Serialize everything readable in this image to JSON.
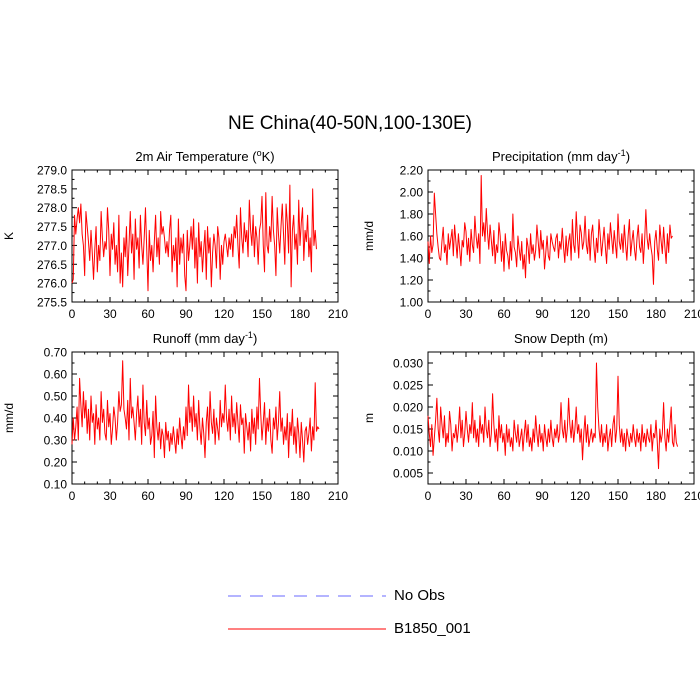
{
  "title": "NE China(40-50N,100-130E)",
  "colors": {
    "model": "#ff0000",
    "obs": "#6a6aff",
    "axis": "#000000"
  },
  "legend": [
    {
      "label": "No Obs",
      "style": "dashed",
      "color": "#6a6aff"
    },
    {
      "label": "B1850_001",
      "style": "solid",
      "color": "#ff0000"
    }
  ],
  "chart_data": [
    {
      "type": "line",
      "title": "2m Air Temperature (°K)",
      "title_parts": [
        "2m Air Temperature (",
        "o",
        "K)"
      ],
      "ylabel": "K",
      "xlim": [
        0,
        210
      ],
      "xticks": [
        0,
        30,
        60,
        90,
        120,
        150,
        180,
        210
      ],
      "xtick_labels": [
        "0",
        "30",
        "60",
        "90",
        "120",
        "150",
        "180",
        "210"
      ],
      "ylim": [
        275.5,
        279.0
      ],
      "yticks": [
        275.5,
        276.0,
        276.5,
        277.0,
        277.5,
        278.0,
        278.5,
        279.0
      ],
      "ytick_labels": [
        "275.5",
        "276.0",
        "276.5",
        "277.0",
        "277.5",
        "278.0",
        "278.5",
        "279.0"
      ],
      "series": [
        {
          "name": "B1850_001",
          "x_start": 0,
          "x_step": 1,
          "values": [
            276.0,
            276.1,
            277.8,
            277.3,
            277.7,
            278.0,
            277.6,
            278.1,
            277.3,
            277.0,
            276.2,
            277.9,
            277.5,
            277.1,
            276.6,
            277.4,
            276.8,
            276.1,
            276.9,
            277.5,
            276.3,
            277.0,
            276.6,
            277.9,
            277.2,
            276.7,
            277.1,
            276.9,
            278.0,
            277.4,
            276.2,
            277.3,
            276.9,
            277.6,
            276.5,
            277.0,
            276.3,
            277.8,
            276.0,
            276.8,
            275.9,
            277.2,
            276.7,
            277.5,
            276.2,
            277.0,
            277.9,
            276.8,
            277.3,
            276.1,
            277.7,
            276.9,
            277.2,
            276.4,
            277.8,
            277.0,
            276.5,
            277.2,
            278.0,
            276.9,
            275.8,
            277.4,
            276.6,
            277.0,
            276.3,
            277.1,
            277.8,
            276.7,
            277.2,
            276.5,
            277.9,
            277.3,
            277.5,
            277.2,
            276.8,
            277.1,
            276.7,
            277.4,
            277.8,
            276.3,
            277.0,
            276.6,
            277.2,
            275.9,
            277.7,
            276.5,
            277.2,
            276.8,
            277.3,
            276.2,
            275.8,
            277.4,
            276.6,
            277.0,
            277.5,
            276.9,
            277.7,
            276.4,
            277.2,
            276.0,
            277.6,
            276.7,
            277.1,
            276.3,
            276.9,
            277.4,
            276.1,
            277.5,
            276.8,
            277.2,
            275.9,
            276.8,
            277.3,
            277.0,
            276.4,
            277.5,
            277.2,
            276.1,
            277.0,
            276.5,
            277.1,
            277.3,
            277.0,
            276.7,
            277.2,
            276.9,
            277.3,
            276.7,
            277.5,
            277.2,
            277.8,
            277.0,
            276.4,
            278.0,
            277.2,
            276.8,
            277.6,
            277.1,
            277.4,
            276.7,
            278.2,
            277.4,
            277.0,
            277.8,
            276.7,
            277.5,
            277.2,
            276.5,
            277.4,
            277.6,
            278.3,
            277.0,
            276.3,
            278.4,
            277.0,
            276.8,
            277.5,
            277.1,
            278.3,
            277.4,
            277.0,
            276.2,
            278.0,
            277.3,
            276.8,
            277.5,
            278.1,
            277.3,
            276.5,
            278.1,
            277.6,
            276.8,
            278.6,
            275.9,
            277.4,
            277.8,
            276.9,
            277.3,
            276.5,
            278.2,
            277.0,
            277.6,
            278.0,
            276.6,
            277.4,
            277.1,
            277.8,
            276.7,
            277.2,
            276.3,
            278.5,
            277.0,
            277.4,
            276.9
          ]
        }
      ]
    },
    {
      "type": "line",
      "title": "Precipitation (mm day⁻¹)",
      "title_parts": [
        "Precipitation (mm day",
        "-1",
        ")"
      ],
      "ylabel": "mm/d",
      "xlim": [
        0,
        210
      ],
      "xticks": [
        0,
        30,
        60,
        90,
        120,
        150,
        180,
        210
      ],
      "xtick_labels": [
        "0",
        "30",
        "60",
        "90",
        "120",
        "150",
        "180",
        "210"
      ],
      "ylim": [
        1.0,
        2.2
      ],
      "yticks": [
        1.0,
        1.2,
        1.4,
        1.6,
        1.8,
        2.0,
        2.2
      ],
      "ytick_labels": [
        "1.00",
        "1.20",
        "1.40",
        "1.60",
        "1.80",
        "2.00",
        "2.20"
      ],
      "series": [
        {
          "name": "B1850_001",
          "x_start": 0,
          "x_step": 1,
          "values": [
            1.55,
            1.35,
            1.6,
            1.45,
            1.52,
            1.99,
            1.8,
            1.62,
            1.5,
            1.4,
            1.38,
            1.55,
            1.68,
            1.45,
            1.52,
            1.34,
            1.62,
            1.48,
            1.57,
            1.66,
            1.42,
            1.7,
            1.55,
            1.4,
            1.62,
            1.48,
            1.33,
            1.56,
            1.5,
            1.72,
            1.64,
            1.43,
            1.58,
            1.37,
            1.66,
            1.52,
            1.45,
            1.78,
            1.6,
            1.49,
            1.62,
            1.35,
            2.15,
            1.6,
            1.72,
            1.55,
            1.85,
            1.63,
            1.48,
            1.7,
            1.56,
            1.42,
            1.65,
            1.35,
            1.52,
            1.45,
            1.72,
            1.6,
            1.37,
            1.55,
            1.28,
            1.62,
            1.47,
            1.42,
            1.3,
            1.55,
            1.38,
            1.8,
            1.5,
            1.45,
            1.32,
            1.6,
            1.48,
            1.38,
            1.55,
            1.3,
            1.43,
            1.22,
            1.58,
            1.5,
            1.35,
            1.62,
            1.44,
            1.52,
            1.38,
            1.47,
            1.7,
            1.55,
            1.4,
            1.65,
            1.48,
            1.56,
            1.3,
            1.45,
            1.6,
            1.42,
            1.38,
            1.62,
            1.55,
            1.5,
            1.46,
            1.58,
            1.62,
            1.4,
            1.55,
            1.48,
            1.67,
            1.5,
            1.36,
            1.6,
            1.42,
            1.55,
            1.62,
            1.38,
            1.75,
            1.52,
            1.45,
            1.82,
            1.58,
            1.4,
            1.7,
            1.63,
            1.48,
            1.55,
            1.78,
            1.52,
            1.44,
            1.66,
            1.38,
            1.62,
            1.7,
            1.5,
            1.36,
            1.58,
            1.45,
            1.75,
            1.6,
            1.42,
            1.55,
            1.68,
            1.5,
            1.35,
            1.62,
            1.48,
            1.72,
            1.58,
            1.44,
            1.65,
            1.52,
            1.4,
            1.8,
            1.55,
            1.48,
            1.62,
            1.45,
            1.7,
            1.52,
            1.38,
            1.6,
            1.75,
            1.42,
            1.55,
            1.65,
            1.48,
            1.38,
            1.58,
            1.7,
            1.5,
            1.45,
            1.62,
            1.35,
            1.55,
            1.84,
            1.58,
            1.48,
            1.62,
            1.5,
            1.42,
            1.16,
            1.55,
            1.65,
            1.48,
            1.38,
            1.7,
            1.56,
            1.44,
            1.68,
            1.5,
            1.35,
            1.62,
            1.45,
            1.7,
            1.58,
            1.6
          ]
        }
      ]
    },
    {
      "type": "line",
      "title": "Runoff (mm day⁻¹)",
      "title_parts": [
        "Runoff (mm day",
        "-1",
        ")"
      ],
      "ylabel": "mm/d",
      "xlim": [
        0,
        210
      ],
      "xticks": [
        0,
        30,
        60,
        90,
        120,
        150,
        180,
        210
      ],
      "xtick_labels": [
        "0",
        "30",
        "60",
        "90",
        "120",
        "150",
        "180",
        "210"
      ],
      "ylim": [
        0.1,
        0.7
      ],
      "yticks": [
        0.1,
        0.2,
        0.3,
        0.4,
        0.5,
        0.6,
        0.7
      ],
      "ytick_labels": [
        "0.10",
        "0.20",
        "0.30",
        "0.40",
        "0.50",
        "0.60",
        "0.70"
      ],
      "series": [
        {
          "name": "B1850_001",
          "x_start": 0,
          "x_step": 1,
          "values": [
            0.28,
            0.4,
            0.3,
            0.36,
            0.45,
            0.3,
            0.58,
            0.46,
            0.36,
            0.52,
            0.4,
            0.48,
            0.33,
            0.44,
            0.3,
            0.5,
            0.38,
            0.42,
            0.28,
            0.46,
            0.35,
            0.4,
            0.3,
            0.52,
            0.38,
            0.44,
            0.33,
            0.3,
            0.48,
            0.36,
            0.42,
            0.28,
            0.35,
            0.45,
            0.4,
            0.3,
            0.38,
            0.52,
            0.43,
            0.46,
            0.66,
            0.44,
            0.4,
            0.35,
            0.48,
            0.3,
            0.58,
            0.4,
            0.45,
            0.38,
            0.3,
            0.42,
            0.5,
            0.36,
            0.44,
            0.28,
            0.55,
            0.38,
            0.32,
            0.48,
            0.35,
            0.4,
            0.28,
            0.32,
            0.43,
            0.22,
            0.5,
            0.36,
            0.3,
            0.38,
            0.26,
            0.35,
            0.32,
            0.22,
            0.38,
            0.3,
            0.34,
            0.25,
            0.33,
            0.28,
            0.36,
            0.3,
            0.24,
            0.35,
            0.28,
            0.4,
            0.32,
            0.26,
            0.36,
            0.3,
            0.45,
            0.32,
            0.55,
            0.38,
            0.45,
            0.34,
            0.5,
            0.36,
            0.42,
            0.3,
            0.48,
            0.35,
            0.28,
            0.4,
            0.33,
            0.22,
            0.38,
            0.45,
            0.3,
            0.52,
            0.38,
            0.33,
            0.44,
            0.28,
            0.4,
            0.35,
            0.3,
            0.48,
            0.36,
            0.42,
            0.38,
            0.55,
            0.4,
            0.34,
            0.44,
            0.3,
            0.5,
            0.36,
            0.42,
            0.33,
            0.47,
            0.38,
            0.29,
            0.46,
            0.37,
            0.4,
            0.24,
            0.42,
            0.36,
            0.3,
            0.38,
            0.25,
            0.44,
            0.33,
            0.4,
            0.28,
            0.45,
            0.35,
            0.58,
            0.42,
            0.3,
            0.38,
            0.47,
            0.28,
            0.4,
            0.34,
            0.44,
            0.3,
            0.24,
            0.4,
            0.35,
            0.45,
            0.3,
            0.38,
            0.52,
            0.34,
            0.4,
            0.28,
            0.36,
            0.3,
            0.42,
            0.22,
            0.38,
            0.32,
            0.44,
            0.28,
            0.36,
            0.24,
            0.4,
            0.33,
            0.22,
            0.38,
            0.3,
            0.2,
            0.34,
            0.36,
            0.28,
            0.33,
            0.4,
            0.25,
            0.36,
            0.3,
            0.56,
            0.34,
            0.36,
            0.35
          ]
        }
      ]
    },
    {
      "type": "line",
      "title": "Snow Depth (m)",
      "title_parts": [
        "Snow Depth (m)",
        "",
        ""
      ],
      "ylabel": "m",
      "xlim": [
        0,
        210
      ],
      "xticks": [
        0,
        30,
        60,
        90,
        120,
        150,
        180,
        210
      ],
      "xtick_labels": [
        "0",
        "30",
        "60",
        "90",
        "120",
        "150",
        "180",
        "210"
      ],
      "ylim": [
        0.0025,
        0.0325
      ],
      "yticks": [
        0.005,
        0.01,
        0.015,
        0.02,
        0.025,
        0.03
      ],
      "ytick_labels": [
        "0.005",
        "0.010",
        "0.015",
        "0.020",
        "0.025",
        "0.030"
      ],
      "series": [
        {
          "name": "B1850_001",
          "x_start": 0,
          "x_step": 1,
          "values": [
            0.018,
            0.014,
            0.011,
            0.016,
            0.009,
            0.013,
            0.017,
            0.022,
            0.015,
            0.012,
            0.02,
            0.016,
            0.013,
            0.018,
            0.011,
            0.014,
            0.012,
            0.019,
            0.016,
            0.01,
            0.014,
            0.013,
            0.016,
            0.012,
            0.015,
            0.02,
            0.013,
            0.017,
            0.011,
            0.014,
            0.019,
            0.015,
            0.012,
            0.016,
            0.014,
            0.021,
            0.013,
            0.017,
            0.012,
            0.015,
            0.011,
            0.018,
            0.014,
            0.016,
            0.012,
            0.02,
            0.015,
            0.013,
            0.017,
            0.011,
            0.014,
            0.023,
            0.016,
            0.012,
            0.015,
            0.01,
            0.018,
            0.013,
            0.016,
            0.012,
            0.014,
            0.009,
            0.016,
            0.012,
            0.015,
            0.011,
            0.013,
            0.01,
            0.017,
            0.014,
            0.012,
            0.016,
            0.011,
            0.013,
            0.015,
            0.01,
            0.014,
            0.017,
            0.012,
            0.016,
            0.011,
            0.013,
            0.01,
            0.015,
            0.012,
            0.018,
            0.014,
            0.011,
            0.016,
            0.012,
            0.014,
            0.01,
            0.016,
            0.013,
            0.011,
            0.015,
            0.012,
            0.017,
            0.013,
            0.011,
            0.015,
            0.013,
            0.016,
            0.012,
            0.014,
            0.021,
            0.015,
            0.013,
            0.017,
            0.012,
            0.015,
            0.022,
            0.016,
            0.013,
            0.017,
            0.012,
            0.015,
            0.02,
            0.014,
            0.016,
            0.012,
            0.015,
            0.008,
            0.014,
            0.018,
            0.012,
            0.016,
            0.011,
            0.013,
            0.015,
            0.012,
            0.014,
            0.013,
            0.03,
            0.02,
            0.015,
            0.012,
            0.016,
            0.011,
            0.014,
            0.012,
            0.016,
            0.01,
            0.013,
            0.015,
            0.011,
            0.016,
            0.018,
            0.012,
            0.015,
            0.027,
            0.016,
            0.012,
            0.015,
            0.011,
            0.014,
            0.01,
            0.015,
            0.013,
            0.011,
            0.014,
            0.012,
            0.016,
            0.013,
            0.011,
            0.015,
            0.012,
            0.014,
            0.01,
            0.016,
            0.012,
            0.014,
            0.011,
            0.015,
            0.013,
            0.012,
            0.016,
            0.01,
            0.014,
            0.013,
            0.017,
            0.012,
            0.006,
            0.015,
            0.012,
            0.014,
            0.021,
            0.013,
            0.01,
            0.015,
            0.012,
            0.016,
            0.02,
            0.012,
            0.011,
            0.016,
            0.012,
            0.011
          ]
        }
      ]
    }
  ]
}
